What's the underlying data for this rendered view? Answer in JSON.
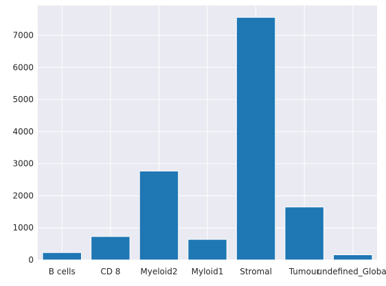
{
  "chart_data": {
    "type": "bar",
    "categories": [
      "B cells",
      "CD 8",
      "Myeloid2",
      "Myloid1",
      "Stromal",
      "Tumour",
      "undefined_Global"
    ],
    "values": [
      230,
      730,
      2770,
      640,
      7560,
      1650,
      160
    ],
    "title": "",
    "xlabel": "",
    "ylabel": "",
    "ylim": [
      0,
      7930
    ],
    "yticks": [
      0,
      1000,
      2000,
      3000,
      4000,
      5000,
      6000,
      7000
    ],
    "grid": true,
    "colors": {
      "bar": "#1f77b4",
      "plot_background": "#eaeaf2",
      "grid": "#ffffff",
      "text": "#262626"
    }
  }
}
